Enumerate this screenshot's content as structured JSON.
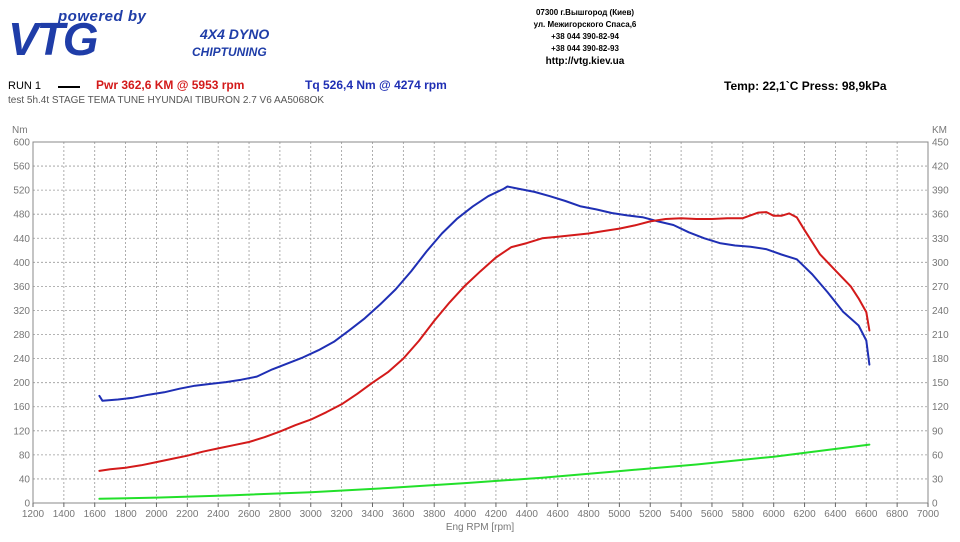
{
  "header": {
    "logo": {
      "tagline": "powered by",
      "brand": "VTG",
      "subtitle_1": "4X4 DYNO",
      "subtitle_2": "CHIPTUNING"
    },
    "contact": {
      "address_1": "07300 г.Вышгород (Киев)",
      "address_2": "ул. Межигорского Спаса,6",
      "phone_1": "+38 044 390-82-94",
      "phone_2": "+38 044 390-82-93",
      "website": "http://vtg.kiev.ua"
    }
  },
  "run_info": {
    "run_label": "RUN 1",
    "power_summary": "Pwr  362,6 KM @ 5953 rpm",
    "torque_summary": "Tq  526,4 Nm @ 4274 rpm",
    "environment": "Temp: 22,1`C    Press: 98,9kPa",
    "test_description": "test  5h.4t  STAGE TEMA TUNE HYUNDAI TIBURON 2.7 V6 AA5068OK"
  },
  "colors": {
    "torque": "#1f2fb4",
    "power": "#d31a1a",
    "third_curve": "#22e02a",
    "grid": "#9a9a9a",
    "axis_text": "#777777"
  },
  "chart_data": {
    "type": "line",
    "xlabel": "Eng RPM [rpm]",
    "ylabel_left": "Nm",
    "ylabel_right": "KM",
    "xlim": [
      1200,
      7000
    ],
    "ylim_left": [
      0,
      600
    ],
    "ylim_right": [
      0,
      450
    ],
    "x_ticks": [
      "1200",
      "1400",
      "1600",
      "1800",
      "2000",
      "2200",
      "2400",
      "2600",
      "2800",
      "3000",
      "3200",
      "3400",
      "3600",
      "3800",
      "4000",
      "4200",
      "4400",
      "4600",
      "4800",
      "5000",
      "5200",
      "5400",
      "5600",
      "5800",
      "6000",
      "6200",
      "6400",
      "6600",
      "6800",
      "7000"
    ],
    "y_ticks_left": [
      "0",
      "40",
      "80",
      "120",
      "160",
      "200",
      "240",
      "280",
      "320",
      "360",
      "400",
      "440",
      "480",
      "520",
      "560",
      "600"
    ],
    "y_ticks_right": [
      "0",
      "30",
      "60",
      "90",
      "120",
      "150",
      "180",
      "210",
      "240",
      "270",
      "300",
      "330",
      "360",
      "390",
      "420",
      "450"
    ],
    "grid": true,
    "series": [
      {
        "name": "Tq",
        "axis": "left",
        "x": [
          1630,
          1650,
          1750,
          1850,
          1950,
          2050,
          2150,
          2250,
          2350,
          2450,
          2550,
          2650,
          2750,
          2850,
          2950,
          3050,
          3150,
          3250,
          3350,
          3450,
          3550,
          3650,
          3750,
          3850,
          3950,
          4050,
          4150,
          4250,
          4274,
          4350,
          4450,
          4550,
          4650,
          4750,
          4850,
          4950,
          5050,
          5150,
          5250,
          5350,
          5450,
          5550,
          5650,
          5750,
          5850,
          5950,
          6050,
          6150,
          6250,
          6350,
          6450,
          6550,
          6600,
          6620
        ],
        "y": [
          178,
          170,
          172,
          175,
          180,
          184,
          190,
          195,
          198,
          201,
          205,
          210,
          222,
          232,
          242,
          254,
          268,
          287,
          307,
          330,
          355,
          385,
          418,
          448,
          473,
          493,
          510,
          522,
          526,
          522,
          517,
          510,
          502,
          493,
          488,
          482,
          478,
          475,
          468,
          462,
          450,
          440,
          432,
          428,
          426,
          422,
          413,
          405,
          380,
          350,
          318,
          295,
          270,
          230
        ]
      },
      {
        "name": "Pwr",
        "axis": "right",
        "x": [
          1630,
          1700,
          1800,
          1900,
          2000,
          2100,
          2200,
          2300,
          2400,
          2500,
          2600,
          2700,
          2800,
          2900,
          3000,
          3100,
          3200,
          3300,
          3400,
          3500,
          3600,
          3700,
          3800,
          3900,
          4000,
          4100,
          4200,
          4300,
          4400,
          4500,
          4600,
          4700,
          4800,
          4900,
          5000,
          5100,
          5200,
          5300,
          5400,
          5500,
          5600,
          5700,
          5800,
          5900,
          5953,
          6000,
          6050,
          6100,
          6150,
          6200,
          6300,
          6400,
          6500,
          6550,
          6600,
          6620
        ],
        "y": [
          40,
          42,
          44,
          47,
          51,
          55,
          59,
          64,
          68,
          72,
          76,
          82,
          89,
          97,
          104,
          113,
          123,
          136,
          150,
          163,
          180,
          202,
          227,
          250,
          271,
          289,
          306,
          319,
          324,
          330,
          332,
          334,
          336,
          339,
          342,
          346,
          351,
          354,
          355,
          354,
          354,
          355,
          355,
          362,
          362.6,
          358,
          358,
          361,
          356,
          340,
          310,
          290,
          270,
          255,
          238,
          215
        ]
      },
      {
        "axis": "left",
        "x": [
          1630,
          2000,
          2500,
          3000,
          3500,
          4000,
          4500,
          5000,
          5500,
          6000,
          6620
        ],
        "y": [
          7,
          9,
          13,
          18,
          25,
          33,
          42,
          53,
          64,
          77,
          97
        ]
      }
    ]
  }
}
